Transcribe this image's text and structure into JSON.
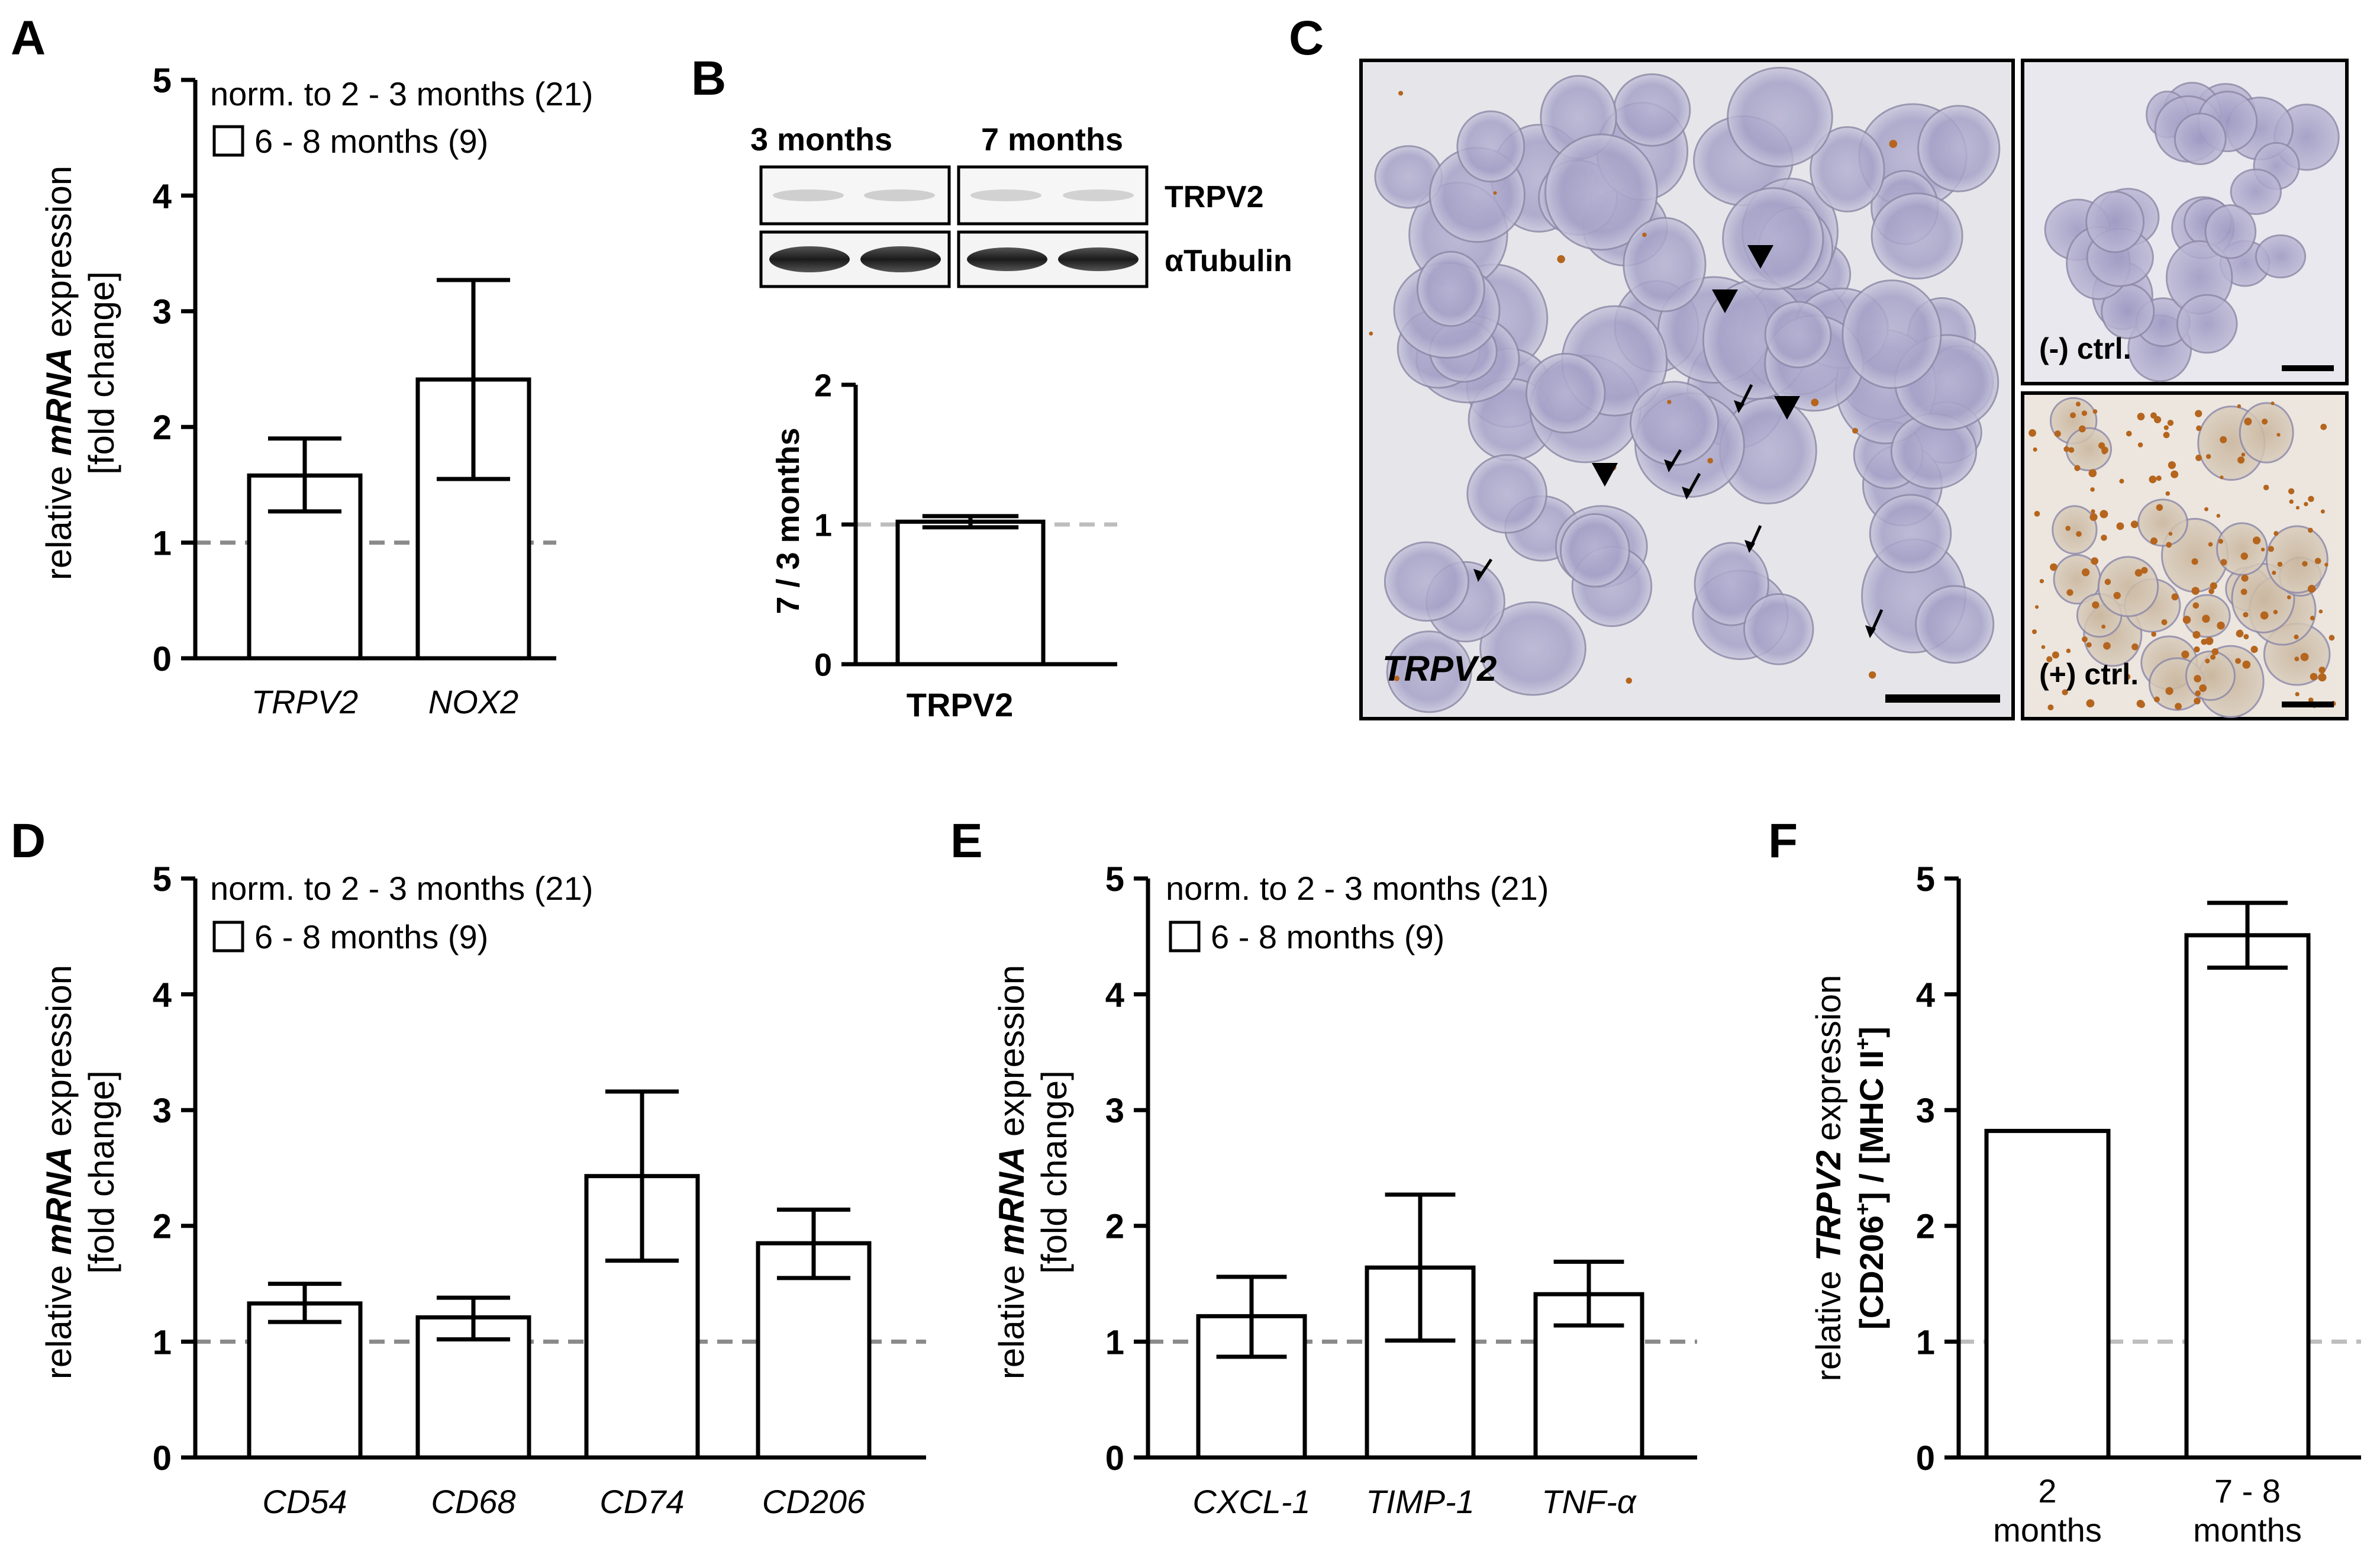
{
  "panels": {
    "A": "A",
    "B": "B",
    "C": "C",
    "D": "D",
    "E": "E",
    "F": "F"
  },
  "legend": {
    "norm": "norm. to 2 - 3 months (21)",
    "group": "6 - 8 months (9)"
  },
  "ylabel": {
    "pre": "relative ",
    "mrna": "mRNA",
    "post": " expression",
    "fold": "[fold change]"
  },
  "panelB": {
    "col1": "3 months",
    "col2": "7 months",
    "row1": "TRPV2",
    "row2": "αTubulin",
    "ylabel": "7 / 3 months",
    "xlabel": "TRPV2"
  },
  "panelC": {
    "main_label": "TRPV2",
    "neg_label": "(-) ctrl.",
    "pos_label": "(+) ctrl."
  },
  "panelF": {
    "ylabel_pre": "relative ",
    "ylabel_gene": "TRPV2",
    "ylabel_post": " expression",
    "ylabel_line2": "[CD206",
    "ylabel_sup1": "+",
    "ylabel_mid": "] / [MHC II",
    "ylabel_sup2": "+",
    "ylabel_end": "]",
    "cat1_l1": "2",
    "cat1_l2": "months",
    "cat2_l1": "7 - 8",
    "cat2_l2": "months"
  },
  "colors": {
    "bar_fill": "#ffffff",
    "axis": "#000000",
    "ref_line": "#8a8a8a",
    "ref_line_light": "#bdbdbd"
  },
  "chart_data": [
    {
      "panel": "A",
      "type": "bar",
      "ylim": [
        0,
        5
      ],
      "yticks": [
        0,
        1,
        2,
        3,
        4,
        5
      ],
      "reference_line": 1,
      "categories": [
        "TRPV2",
        "NOX2"
      ],
      "series": [
        {
          "name": "6 - 8 months (9)",
          "values": [
            1.58,
            2.41
          ],
          "err_low": [
            1.27,
            1.55
          ],
          "err_high": [
            1.9,
            3.27
          ]
        }
      ]
    },
    {
      "panel": "B",
      "type": "bar",
      "ylim": [
        0,
        2
      ],
      "yticks": [
        0,
        1,
        2
      ],
      "reference_line": 1,
      "categories": [
        "TRPV2"
      ],
      "series": [
        {
          "values": [
            1.02
          ],
          "err_low": [
            0.98
          ],
          "err_high": [
            1.06
          ]
        }
      ]
    },
    {
      "panel": "D",
      "type": "bar",
      "ylim": [
        0,
        5
      ],
      "yticks": [
        0,
        1,
        2,
        3,
        4,
        5
      ],
      "reference_line": 1,
      "categories": [
        "CD54",
        "CD68",
        "CD74",
        "CD206"
      ],
      "series": [
        {
          "name": "6 - 8 months (9)",
          "values": [
            1.33,
            1.21,
            2.43,
            1.85
          ],
          "err_low": [
            1.17,
            1.02,
            1.7,
            1.55
          ],
          "err_high": [
            1.5,
            1.38,
            3.16,
            2.14
          ]
        }
      ]
    },
    {
      "panel": "E",
      "type": "bar",
      "ylim": [
        0,
        5
      ],
      "yticks": [
        0,
        1,
        2,
        3,
        4,
        5
      ],
      "reference_line": 1,
      "categories": [
        "CXCL-1",
        "TIMP-1",
        "TNF-α"
      ],
      "series": [
        {
          "name": "6 - 8 months (9)",
          "values": [
            1.22,
            1.64,
            1.41
          ],
          "err_low": [
            0.87,
            1.01,
            1.14
          ],
          "err_high": [
            1.56,
            2.27,
            1.69
          ]
        }
      ]
    },
    {
      "panel": "F",
      "type": "bar",
      "ylim": [
        0,
        5
      ],
      "yticks": [
        0,
        1,
        2,
        3,
        4,
        5
      ],
      "reference_line": 1,
      "categories": [
        "2 months",
        "7 - 8 months"
      ],
      "series": [
        {
          "values": [
            2.82,
            4.51
          ],
          "err_low": [
            2.82,
            4.23
          ],
          "err_high": [
            2.82,
            4.79
          ]
        }
      ]
    }
  ]
}
